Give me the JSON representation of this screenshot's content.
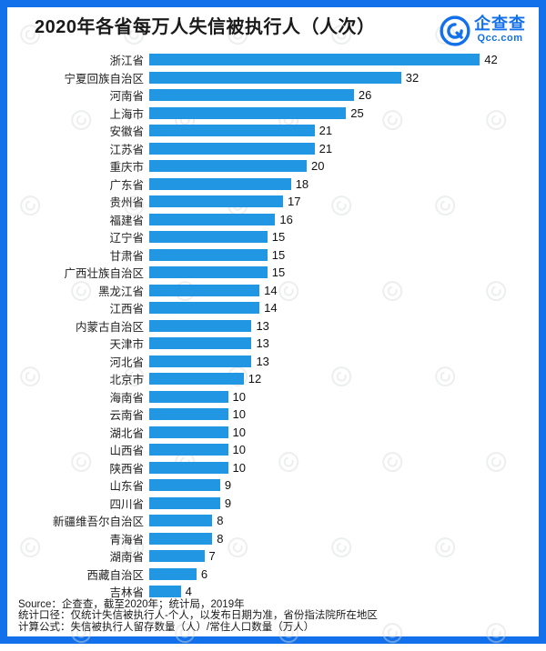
{
  "header": {
    "title": "2020年各省每万人失信被执行人（人次）"
  },
  "logo": {
    "name": "企查查",
    "domain": "Qcc.com"
  },
  "chart_data": {
    "type": "bar",
    "orientation": "horizontal",
    "title": "2020年各省每万人失信被执行人（人次）",
    "categories": [
      "浙江省",
      "宁夏回族自治区",
      "河南省",
      "上海市",
      "安徽省",
      "江苏省",
      "重庆市",
      "广东省",
      "贵州省",
      "福建省",
      "辽宁省",
      "甘肃省",
      "广西壮族自治区",
      "黑龙江省",
      "江西省",
      "内蒙古自治区",
      "天津市",
      "河北省",
      "北京市",
      "海南省",
      "云南省",
      "湖北省",
      "山西省",
      "陕西省",
      "山东省",
      "四川省",
      "新疆维吾尔自治区",
      "青海省",
      "湖南省",
      "西藏自治区",
      "吉林省"
    ],
    "values": [
      42,
      32,
      26,
      25,
      21,
      21,
      20,
      18,
      17,
      16,
      15,
      15,
      15,
      14,
      14,
      13,
      13,
      13,
      12,
      10,
      10,
      10,
      10,
      10,
      9,
      9,
      8,
      8,
      7,
      6,
      4
    ],
    "xlim": [
      0,
      42
    ],
    "value_labels": true,
    "bar_color": "#2196e3",
    "legend": "none",
    "grid": false
  },
  "footer": {
    "lines": [
      "Source：企查查，截至2020年；统计局，2019年",
      "统计口径：仅统计失信被执行人-个人，以发布日期为准，省份指法院所在地区",
      "计算公式：失信被执行人留存数量（人）/常住人口数量（万人）"
    ]
  },
  "colors": {
    "border": "#1370eb",
    "bar": "#2196e3",
    "accent": "#1370eb"
  }
}
